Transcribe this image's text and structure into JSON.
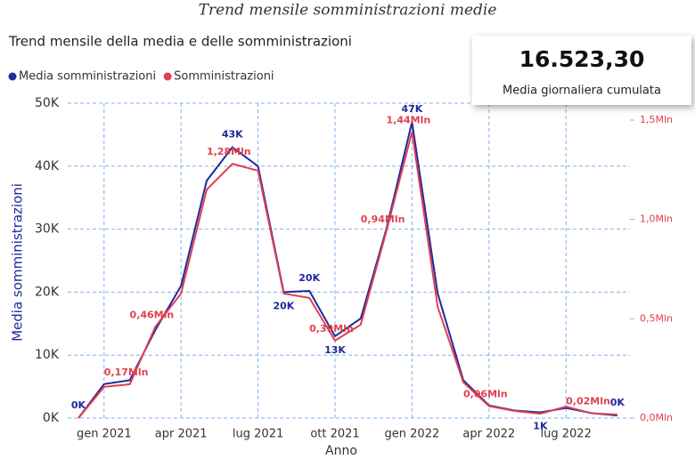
{
  "page_title": "Trend mensile somministrazioni medie",
  "card": {
    "value": "16.523,30",
    "label": "Media giornaliera cumulata"
  },
  "chart_data": {
    "type": "line",
    "title": "Trend mensile della media e delle somministrazioni",
    "x_label": "Anno",
    "y_label": "Media somministrazioni",
    "categories": [
      null,
      "gen 2021",
      null,
      null,
      "apr 2021",
      null,
      null,
      "lug 2021",
      null,
      null,
      "ott 2021",
      null,
      null,
      "gen 2022",
      null,
      null,
      "apr 2022",
      null,
      null,
      "lug 2022",
      null,
      null
    ],
    "series": [
      {
        "name": "Media somministrazioni",
        "color": "#1f2a9c",
        "values": [
          0,
          5400,
          6000,
          14000,
          21000,
          37700,
          43000,
          40000,
          20000,
          20200,
          13000,
          15800,
          30000,
          47000,
          19800,
          6000,
          2000,
          1200,
          900,
          1600,
          800,
          400
        ],
        "value_labels": [
          "0K",
          null,
          null,
          null,
          null,
          null,
          "43K",
          null,
          "20K",
          "20K",
          "13K",
          null,
          null,
          "47K",
          null,
          null,
          null,
          null,
          "1K",
          null,
          null,
          "0K"
        ]
      },
      {
        "name": "Somministrazioni",
        "color": "#e0404f",
        "axis": "y2",
        "values": [
          0,
          157000,
          170000,
          460000,
          627000,
          1150000,
          1280000,
          1245000,
          627000,
          605000,
          390000,
          470000,
          940000,
          1440000,
          560000,
          180000,
          60000,
          36000,
          22000,
          58000,
          24000,
          18000
        ],
        "value_labels": [
          null,
          null,
          "0,17Mln",
          "0,46Mln",
          null,
          null,
          "1,28Mln",
          null,
          null,
          null,
          "0,39Mln",
          null,
          "0,94Mln",
          "1,44Mln",
          null,
          null,
          "0,06Mln",
          null,
          null,
          null,
          "0,02Mln",
          null
        ]
      }
    ],
    "ylim": [
      0,
      50000
    ],
    "yticks": [
      {
        "value": 0,
        "label": "0K"
      },
      {
        "value": 10000,
        "label": "10K"
      },
      {
        "value": 20000,
        "label": "20K"
      },
      {
        "value": 30000,
        "label": "30K"
      },
      {
        "value": 40000,
        "label": "40K"
      },
      {
        "value": 50000,
        "label": "50K"
      }
    ],
    "y2lim": [
      0,
      1585000
    ],
    "y2ticks": [
      {
        "value": 0,
        "label": "0,0Mln"
      },
      {
        "value": 500000,
        "label": "0,5Mln"
      },
      {
        "value": 1000000,
        "label": "1,0Mln"
      },
      {
        "value": 1500000,
        "label": "1,5Mln"
      }
    ],
    "grid": true
  }
}
